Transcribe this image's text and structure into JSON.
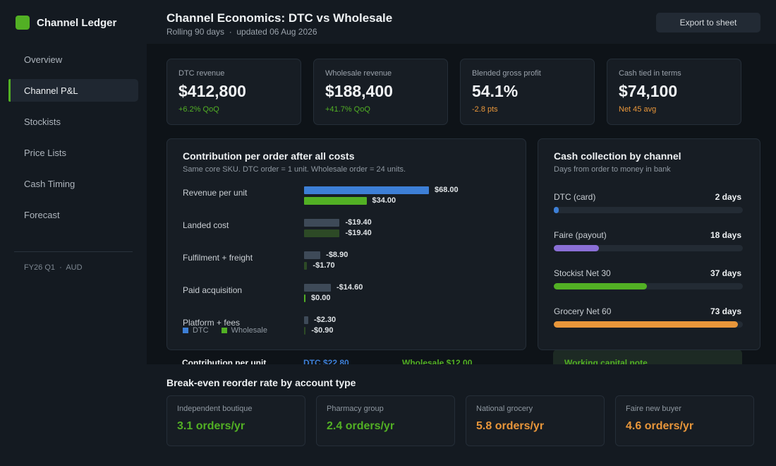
{
  "app": {
    "name": "Channel Ledger",
    "brand_color": "#52b024"
  },
  "sidebar": {
    "items": [
      {
        "label": "Overview"
      },
      {
        "label": "Channel P&L",
        "active": true
      },
      {
        "label": "Stockists"
      },
      {
        "label": "Price Lists"
      },
      {
        "label": "Cash Timing"
      },
      {
        "label": "Forecast"
      }
    ],
    "meta": {
      "period": "FY26 Q1",
      "sep": "·",
      "currency": "AUD"
    }
  },
  "header": {
    "title": "Channel Economics: DTC vs Wholesale",
    "subtitle": "Rolling 90 days  ·  updated 06 Aug 2026",
    "export_label": "Export to sheet"
  },
  "kpis": [
    {
      "label": "DTC revenue",
      "value": "$412,800",
      "delta": "+6.2% QoQ",
      "delta_color": "#52b024"
    },
    {
      "label": "Wholesale revenue",
      "value": "$188,400",
      "delta": "+41.7% QoQ",
      "delta_color": "#52b024"
    },
    {
      "label": "Blended gross profit",
      "value": "54.1%",
      "delta": "-2.8 pts",
      "delta_color": "#e8963a"
    },
    {
      "label": "Cash tied in terms",
      "value": "$74,100",
      "delta": "Net 45 avg",
      "delta_color": "#e8963a"
    }
  ],
  "contribution": {
    "title": "Contribution per order after all costs",
    "subtitle": "Same core SKU. DTC order = 1 unit. Wholesale order = 24 units.",
    "legend": {
      "dtc": "DTC",
      "wholesale": "Wholesale"
    },
    "colors": {
      "dtc_rev": "#3d7fd6",
      "ws_rev": "#52b024",
      "dtc_cost": "#3e4a58",
      "ws_cost": "#2d4a26"
    },
    "chart_data": {
      "type": "bar",
      "categories": [
        "Revenue per unit",
        "Landed cost",
        "Fulfilment + freight",
        "Paid acquisition",
        "Platform + fees"
      ],
      "series": [
        {
          "name": "DTC",
          "values": [
            68.0,
            -19.4,
            -8.9,
            -14.6,
            -2.3
          ],
          "labels": [
            "$68.00",
            "-$19.40",
            "-$8.90",
            "-$14.60",
            "-$2.30"
          ]
        },
        {
          "name": "Wholesale",
          "values": [
            34.0,
            -19.4,
            -1.7,
            0.0,
            -0.9
          ],
          "labels": [
            "$34.00",
            "-$19.40",
            "-$1.70",
            "$0.00",
            "-$0.90"
          ]
        }
      ]
    },
    "footer": {
      "label": "Contribution per unit",
      "dtc": "DTC  $22.80",
      "wholesale": "Wholesale  $12.00"
    }
  },
  "cash": {
    "title": "Cash collection by channel",
    "subtitle": "Days from order to money in bank",
    "max_days": 75,
    "rows": [
      {
        "label": "DTC (card)",
        "value": "2 days",
        "days": 2,
        "color": "#3d7fd6"
      },
      {
        "label": "Faire (payout)",
        "value": "18 days",
        "days": 18,
        "color": "#8a6fd6"
      },
      {
        "label": "Stockist Net 30",
        "value": "37 days",
        "days": 37,
        "color": "#52b024"
      },
      {
        "label": "Grocery Net 60",
        "value": "73 days",
        "days": 73,
        "color": "#e8963a"
      }
    ],
    "note_title": "Working capital note"
  },
  "breakeven": {
    "title": "Break-even reorder rate by account type",
    "cards": [
      {
        "label": "Independent boutique",
        "value": "3.1 orders/yr",
        "color": "#52b024"
      },
      {
        "label": "Pharmacy group",
        "value": "2.4 orders/yr",
        "color": "#52b024"
      },
      {
        "label": "National grocery",
        "value": "5.8 orders/yr",
        "color": "#e8963a"
      },
      {
        "label": "Faire new buyer",
        "value": "4.6 orders/yr",
        "color": "#e8963a"
      }
    ]
  }
}
